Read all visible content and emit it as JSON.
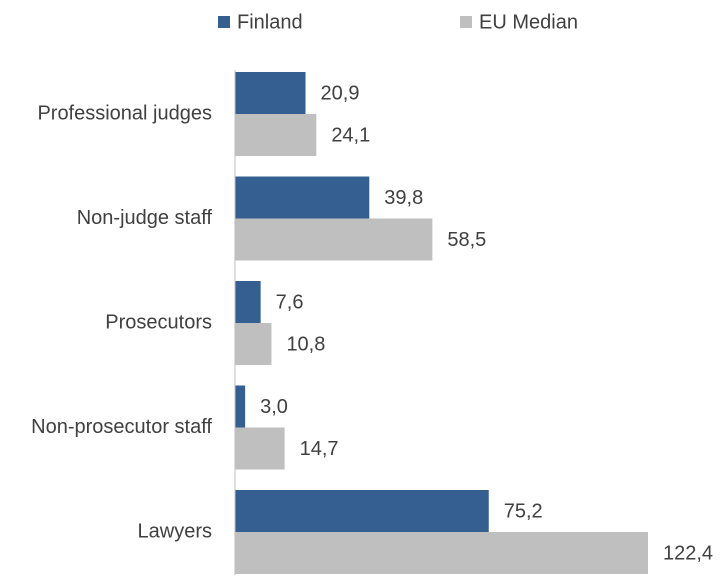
{
  "chart_data": {
    "type": "bar",
    "orientation": "horizontal",
    "legend": "top",
    "categories": [
      "Professional judges",
      "Non-judge staff",
      "Prosecutors",
      "Non-prosecutor staff",
      "Lawyers"
    ],
    "series": [
      {
        "name": "Finland",
        "color": "#365f91",
        "values": [
          20.9,
          39.8,
          7.6,
          3.0,
          75.2
        ],
        "value_labels": [
          "20,9",
          "39,8",
          "7,6",
          "3,0",
          "75,2"
        ]
      },
      {
        "name": "EU Median",
        "color": "#bfbfbf",
        "values": [
          24.1,
          58.5,
          10.8,
          14.7,
          122.4
        ],
        "value_labels": [
          "24,1",
          "58,5",
          "10,8",
          "14,7",
          "122,4"
        ]
      }
    ]
  }
}
